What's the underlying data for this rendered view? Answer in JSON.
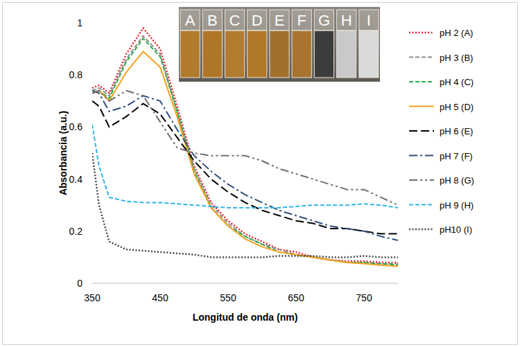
{
  "chart_data": {
    "type": "line",
    "x_label": "Longitud de onda (nm)",
    "y_label": "Absorbancia (a.u.)",
    "x": [
      350,
      360,
      375,
      400,
      425,
      450,
      475,
      500,
      525,
      550,
      575,
      600,
      625,
      650,
      675,
      700,
      725,
      750,
      775,
      800
    ],
    "xlim": [
      350,
      800
    ],
    "xticks": [
      350,
      450,
      550,
      650,
      750
    ],
    "ylim": [
      0,
      1
    ],
    "yticks": [
      0,
      0.2,
      0.4,
      0.6,
      0.8,
      1
    ],
    "grid": false,
    "legend": "right",
    "series": [
      {
        "name": "pH 2 (A)",
        "color": "#e8202a",
        "line_style": "dotted",
        "values": [
          0.75,
          0.76,
          0.73,
          0.88,
          0.98,
          0.9,
          0.68,
          0.45,
          0.31,
          0.24,
          0.19,
          0.16,
          0.13,
          0.12,
          0.1,
          0.09,
          0.085,
          0.085,
          0.08,
          0.08
        ]
      },
      {
        "name": "pH 3 (B)",
        "color": "#8c8c8c",
        "line_style": "dashed",
        "values": [
          0.74,
          0.75,
          0.72,
          0.86,
          0.95,
          0.88,
          0.66,
          0.44,
          0.3,
          0.23,
          0.18,
          0.15,
          0.13,
          0.11,
          0.1,
          0.09,
          0.08,
          0.08,
          0.075,
          0.075
        ]
      },
      {
        "name": "pH 4 (C)",
        "color": "#2ca84a",
        "line_style": "dashed",
        "values": [
          0.73,
          0.74,
          0.71,
          0.85,
          0.94,
          0.87,
          0.66,
          0.43,
          0.29,
          0.22,
          0.18,
          0.15,
          0.12,
          0.11,
          0.1,
          0.09,
          0.08,
          0.08,
          0.075,
          0.07
        ]
      },
      {
        "name": "pH 5 (D)",
        "color": "#f5a11c",
        "line_style": "solid",
        "values": [
          0.73,
          0.74,
          0.7,
          0.81,
          0.89,
          0.83,
          0.64,
          0.42,
          0.29,
          0.22,
          0.17,
          0.14,
          0.12,
          0.11,
          0.1,
          0.09,
          0.08,
          0.075,
          0.07,
          0.065
        ]
      },
      {
        "name": "pH 6 (E)",
        "color": "#000000",
        "line_style": "longdash",
        "values": [
          0.7,
          0.68,
          0.6,
          0.64,
          0.69,
          0.65,
          0.56,
          0.47,
          0.4,
          0.35,
          0.31,
          0.28,
          0.26,
          0.24,
          0.23,
          0.21,
          0.21,
          0.2,
          0.19,
          0.19
        ]
      },
      {
        "name": "pH 7 (F)",
        "color": "#2f4f7a",
        "line_style": "dashdot",
        "values": [
          0.74,
          0.73,
          0.66,
          0.68,
          0.72,
          0.7,
          0.59,
          0.49,
          0.43,
          0.38,
          0.34,
          0.31,
          0.28,
          0.26,
          0.24,
          0.22,
          0.21,
          0.2,
          0.18,
          0.165
        ]
      },
      {
        "name": "pH 8 (G)",
        "color": "#6e6e6e",
        "line_style": "dashdotdot",
        "values": [
          0.73,
          0.74,
          0.7,
          0.74,
          0.72,
          0.62,
          0.52,
          0.5,
          0.49,
          0.49,
          0.49,
          0.47,
          0.44,
          0.42,
          0.4,
          0.38,
          0.36,
          0.36,
          0.33,
          0.3
        ]
      },
      {
        "name": "pH 9 (H)",
        "color": "#2eb4ea",
        "line_style": "dashed",
        "values": [
          0.61,
          0.45,
          0.33,
          0.315,
          0.31,
          0.31,
          0.305,
          0.3,
          0.295,
          0.29,
          0.29,
          0.29,
          0.29,
          0.295,
          0.3,
          0.3,
          0.3,
          0.305,
          0.3,
          0.29
        ]
      },
      {
        "name": "pH10 (I)",
        "color": "#404040",
        "line_style": "dotted",
        "values": [
          0.5,
          0.3,
          0.16,
          0.13,
          0.125,
          0.12,
          0.115,
          0.11,
          0.1,
          0.1,
          0.1,
          0.1,
          0.105,
          0.105,
          0.105,
          0.1,
          0.1,
          0.105,
          0.1,
          0.1
        ]
      }
    ],
    "inset": {
      "labels": [
        "A",
        "B",
        "C",
        "D",
        "E",
        "F",
        "G",
        "H",
        "I"
      ],
      "colors": [
        "#b27a2c",
        "#b07628",
        "#b37b2e",
        "#b17829",
        "#a0702c",
        "#a87430",
        "#3c3c3c",
        "#c9c9c9",
        "#dadada"
      ]
    }
  }
}
